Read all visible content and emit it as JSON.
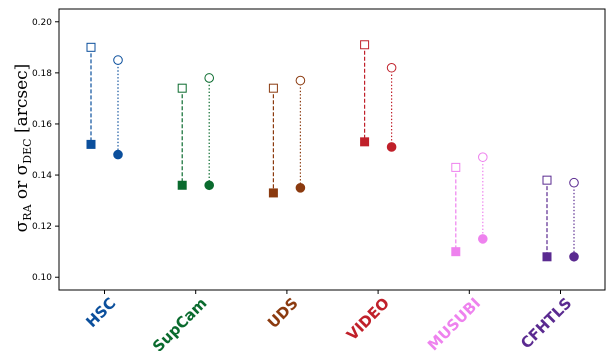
{
  "chart_data": {
    "type": "scatter",
    "ylabel_parts": [
      "σ",
      "RA",
      " or ",
      "σ",
      "DEC",
      " [arcsec]"
    ],
    "ylim": [
      0.095,
      0.205
    ],
    "yticks": [
      "0.10",
      "0.12",
      "0.14",
      "0.16",
      "0.18",
      "0.20"
    ],
    "ytick_values": [
      0.1,
      0.12,
      0.14,
      0.16,
      0.18,
      0.2
    ],
    "grid": false,
    "categories": [
      "HSC",
      "SupCam",
      "UDS",
      "VIDEO",
      "MUSUBI",
      "CFHTLS"
    ],
    "colors": [
      "#0b4f9c",
      "#0a6b2e",
      "#8b3a0f",
      "#c0202a",
      "#ee82ee",
      "#5a2a90"
    ],
    "markers": {
      "ra": "square (dashed connector)",
      "dec": "circle (dotted connector)",
      "open": "before",
      "filled": "after"
    },
    "series": [
      {
        "values_open": [
          0.19,
          0.174,
          0.174,
          0.191,
          0.143,
          0.138
        ],
        "values_filled": [
          0.152,
          0.136,
          0.133,
          0.153,
          0.11,
          0.108
        ]
      },
      {
        "values_open": [
          0.185,
          0.178,
          0.177,
          0.182,
          0.147,
          0.137
        ],
        "values_filled": [
          0.148,
          0.136,
          0.135,
          0.151,
          0.115,
          0.108
        ]
      }
    ]
  }
}
